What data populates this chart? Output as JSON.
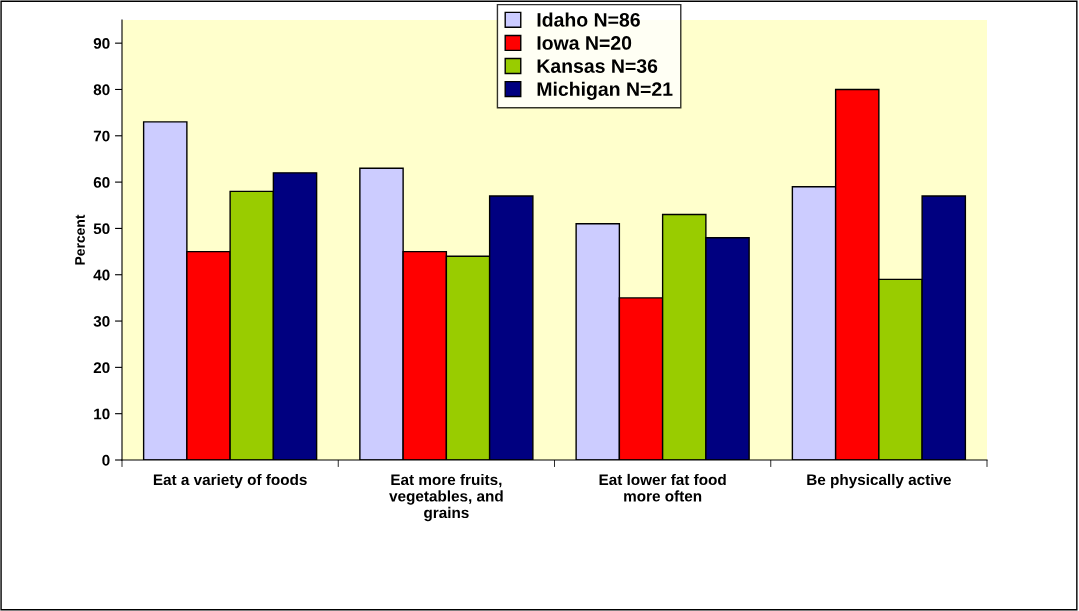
{
  "chart_data": {
    "type": "bar",
    "ylabel": "Percent",
    "categories": [
      "Eat a variety of foods",
      "Eat more fruits,\nvegetables, and\ngrains",
      "Eat lower fat food\nmore often",
      "Be physically active"
    ],
    "series": [
      {
        "name": "Idaho N=86",
        "color": "#ccccff",
        "values": [
          73,
          63,
          51,
          59
        ]
      },
      {
        "name": "Iowa N=20",
        "color": "#ff0000",
        "values": [
          45,
          45,
          35,
          80
        ]
      },
      {
        "name": "Kansas N=36",
        "color": "#99cc00",
        "values": [
          58,
          44,
          53,
          39
        ]
      },
      {
        "name": "Michigan N=21",
        "color": "#000080",
        "values": [
          62,
          57,
          48,
          57
        ]
      }
    ],
    "ylim": [
      0,
      95
    ],
    "yticks": [
      0,
      10,
      20,
      30,
      40,
      50,
      60,
      70,
      80,
      90
    ],
    "grid": false,
    "legend": "top"
  }
}
